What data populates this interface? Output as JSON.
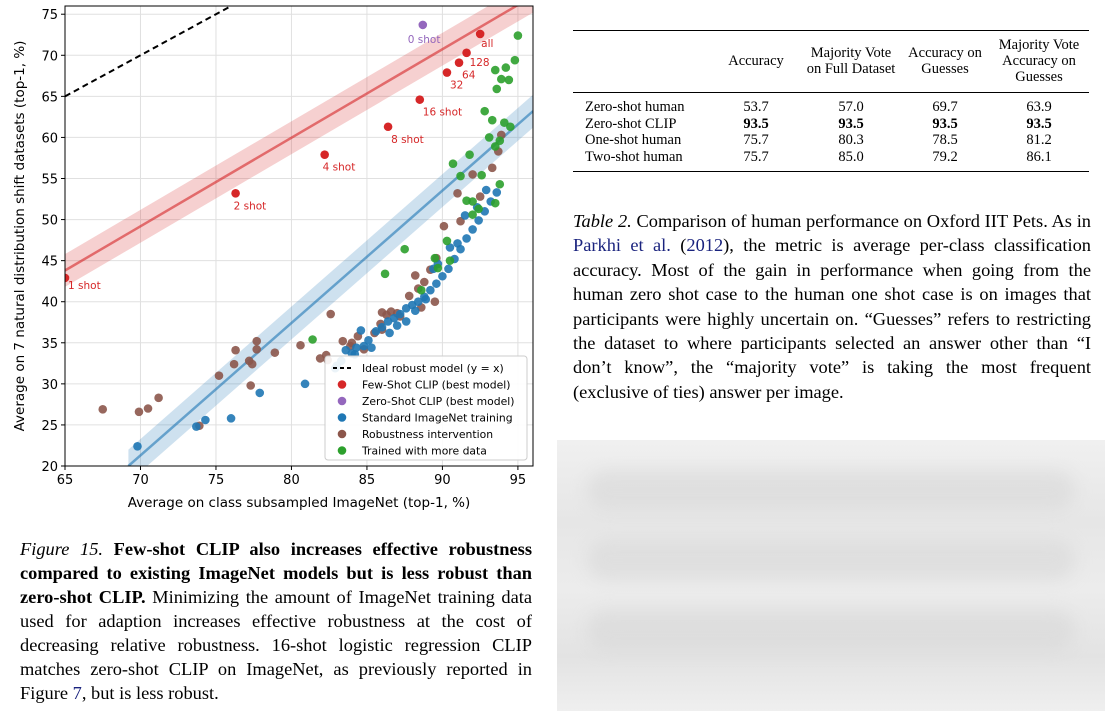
{
  "chart_data": {
    "type": "scatter",
    "xlabel": "Average on class subsampled ImageNet (top-1, %)",
    "ylabel": "Average on 7 natural distribution shift datasets (top-1, %)",
    "xlim": [
      65,
      96
    ],
    "ylim": [
      20,
      76
    ],
    "xticks": [
      65,
      70,
      75,
      80,
      85,
      90,
      95
    ],
    "yticks": [
      20,
      25,
      30,
      35,
      40,
      45,
      50,
      55,
      60,
      65,
      70,
      75
    ],
    "grid": true,
    "legend_location": "lower-right",
    "legend": [
      {
        "label": "Ideal robust model (y = x)",
        "kind": "dashed-line",
        "color": "#000000"
      },
      {
        "label": "Few-Shot CLIP (best model)",
        "kind": "dot",
        "color": "#d62728"
      },
      {
        "label": "Zero-Shot CLIP (best model)",
        "kind": "dot",
        "color": "#9467bd"
      },
      {
        "label": "Standard ImageNet training",
        "kind": "dot",
        "color": "#1f77b4"
      },
      {
        "label": "Robustness intervention",
        "kind": "dot",
        "color": "#8c564b"
      },
      {
        "label": "Trained with more data",
        "kind": "dot",
        "color": "#2ca02c"
      }
    ],
    "ideal_line": {
      "x": [
        65,
        76.5
      ],
      "y": [
        65,
        76.5
      ]
    },
    "few_shot_fit": {
      "x": [
        65,
        96
      ],
      "y": [
        43.8,
        77.2
      ],
      "color": "#d62728"
    },
    "standard_fit": {
      "x": [
        69.2,
        96
      ],
      "y": [
        20,
        63.2
      ],
      "color": "#1f77b4"
    },
    "few_shot": [
      {
        "x": 65.0,
        "y": 42.9,
        "label": "1 shot"
      },
      {
        "x": 76.3,
        "y": 53.2,
        "label": "2 shot"
      },
      {
        "x": 82.2,
        "y": 57.9,
        "label": "4 shot"
      },
      {
        "x": 86.4,
        "y": 61.3,
        "label": "8 shot"
      },
      {
        "x": 88.5,
        "y": 64.6,
        "label": "16 shot"
      },
      {
        "x": 90.3,
        "y": 67.9,
        "label": "32"
      },
      {
        "x": 91.1,
        "y": 69.1,
        "label": "64"
      },
      {
        "x": 91.6,
        "y": 70.3,
        "label": "128"
      },
      {
        "x": 92.5,
        "y": 72.6,
        "label": "all"
      }
    ],
    "zero_shot": [
      {
        "x": 88.7,
        "y": 73.7,
        "label": "0 shot"
      }
    ],
    "standard": [
      [
        69.8,
        22.4
      ],
      [
        73.7,
        24.8
      ],
      [
        74.3,
        25.6
      ],
      [
        76.0,
        25.8
      ],
      [
        77.9,
        28.9
      ],
      [
        80.9,
        30.0
      ],
      [
        83.0,
        32.2
      ],
      [
        83.3,
        32.8
      ],
      [
        83.6,
        34.1
      ],
      [
        84.0,
        33.7
      ],
      [
        84.3,
        34.4
      ],
      [
        84.8,
        34.6
      ],
      [
        85.1,
        35.3
      ],
      [
        85.6,
        36.4
      ],
      [
        86.0,
        36.9
      ],
      [
        86.4,
        37.6
      ],
      [
        86.8,
        38.0
      ],
      [
        87.2,
        38.5
      ],
      [
        87.6,
        39.2
      ],
      [
        88.0,
        39.6
      ],
      [
        88.4,
        40.0
      ],
      [
        88.8,
        40.6
      ],
      [
        89.2,
        41.4
      ],
      [
        89.6,
        42.2
      ],
      [
        90.0,
        43.1
      ],
      [
        90.4,
        44.0
      ],
      [
        90.8,
        45.2
      ],
      [
        91.2,
        46.4
      ],
      [
        91.6,
        47.7
      ],
      [
        92.0,
        48.8
      ],
      [
        92.4,
        49.9
      ],
      [
        92.8,
        51.0
      ],
      [
        93.2,
        52.2
      ],
      [
        93.6,
        53.3
      ],
      [
        90.5,
        46.6
      ],
      [
        91.5,
        50.5
      ],
      [
        92.3,
        51.5
      ],
      [
        89.4,
        44.0
      ],
      [
        88.2,
        38.9
      ],
      [
        87.0,
        37.1
      ],
      [
        86.5,
        36.2
      ],
      [
        85.3,
        34.4
      ],
      [
        84.2,
        33.6
      ],
      [
        82.9,
        31.9
      ],
      [
        87.6,
        37.6
      ],
      [
        89.7,
        44.6
      ],
      [
        91.0,
        47.1
      ],
      [
        92.9,
        53.6
      ],
      [
        84.6,
        36.5
      ],
      [
        88.9,
        40.3
      ]
    ],
    "robustness": [
      [
        67.5,
        26.9
      ],
      [
        69.9,
        26.6
      ],
      [
        70.5,
        27.0
      ],
      [
        71.2,
        28.3
      ],
      [
        73.9,
        24.9
      ],
      [
        75.2,
        31.0
      ],
      [
        76.2,
        32.4
      ],
      [
        76.3,
        34.1
      ],
      [
        77.2,
        32.8
      ],
      [
        77.4,
        32.4
      ],
      [
        77.7,
        34.2
      ],
      [
        77.7,
        35.2
      ],
      [
        78.9,
        33.8
      ],
      [
        77.3,
        29.8
      ],
      [
        80.6,
        34.7
      ],
      [
        81.9,
        33.1
      ],
      [
        82.3,
        33.5
      ],
      [
        82.4,
        32.9
      ],
      [
        82.6,
        38.5
      ],
      [
        83.4,
        35.2
      ],
      [
        83.9,
        34.6
      ],
      [
        84.4,
        35.8
      ],
      [
        84.8,
        34.2
      ],
      [
        85.5,
        36.2
      ],
      [
        86.0,
        38.7
      ],
      [
        86.3,
        38.4
      ],
      [
        86.6,
        38.8
      ],
      [
        87.2,
        38.2
      ],
      [
        87.8,
        40.7
      ],
      [
        88.4,
        41.6
      ],
      [
        88.8,
        42.4
      ],
      [
        89.2,
        43.9
      ],
      [
        89.6,
        45.3
      ],
      [
        90.1,
        49.2
      ],
      [
        91.2,
        49.8
      ],
      [
        92.5,
        52.8
      ],
      [
        93.3,
        56.3
      ],
      [
        93.7,
        58.3
      ],
      [
        93.9,
        60.3
      ],
      [
        88.2,
        43.2
      ],
      [
        87.0,
        38.6
      ],
      [
        85.9,
        37.3
      ],
      [
        84.0,
        35.0
      ],
      [
        89.5,
        40.0
      ],
      [
        91.0,
        53.2
      ],
      [
        92.0,
        55.5
      ],
      [
        86.0,
        36.6
      ],
      [
        88.6,
        39.3
      ]
    ],
    "more_data": [
      [
        81.4,
        35.4
      ],
      [
        86.2,
        43.4
      ],
      [
        87.5,
        46.4
      ],
      [
        88.6,
        41.4
      ],
      [
        89.7,
        44.1
      ],
      [
        90.3,
        47.4
      ],
      [
        90.7,
        56.8
      ],
      [
        91.2,
        55.3
      ],
      [
        91.6,
        52.3
      ],
      [
        91.8,
        57.9
      ],
      [
        92.0,
        50.6
      ],
      [
        92.4,
        51.3
      ],
      [
        92.6,
        55.4
      ],
      [
        92.8,
        63.2
      ],
      [
        93.3,
        62.1
      ],
      [
        93.5,
        58.9
      ],
      [
        93.8,
        59.6
      ],
      [
        93.6,
        65.9
      ],
      [
        93.9,
        67.1
      ],
      [
        94.2,
        68.5
      ],
      [
        94.4,
        67.0
      ],
      [
        94.8,
        69.4
      ],
      [
        95.0,
        72.4
      ],
      [
        94.1,
        61.8
      ],
      [
        94.5,
        61.3
      ],
      [
        93.8,
        54.3
      ],
      [
        93.5,
        52.0
      ],
      [
        92.0,
        52.2
      ],
      [
        90.5,
        45.0
      ],
      [
        89.5,
        45.3
      ],
      [
        93.1,
        60.0
      ],
      [
        93.5,
        68.2
      ]
    ],
    "label_colors": {
      "few": "#d62728",
      "zero": "#9467bd"
    }
  },
  "figure_caption": {
    "label": "Figure 15.",
    "bold": "Few-shot CLIP also increases effective robustness compared to existing ImageNet models but is less robust than zero-shot CLIP.",
    "text_before_link": "Minimizing the amount of ImageNet training data used for adaption increases effective robustness at the cost of decreasing relative robustness. 16-shot logistic regression CLIP matches zero-shot CLIP on ImageNet, as previously reported in Figure",
    "link": "7",
    "text_after_link": ", but is less robust."
  },
  "table": {
    "headers": [
      "",
      "Accuracy",
      "Majority Vote on Full Dataset",
      "Accuracy on Guesses",
      "Majority Vote Accuracy on Guesses"
    ],
    "rows": [
      {
        "label": "Zero-shot human",
        "values": [
          "53.7",
          "57.0",
          "69.7",
          "63.9"
        ],
        "bold": false
      },
      {
        "label": "Zero-shot CLIP",
        "values": [
          "93.5",
          "93.5",
          "93.5",
          "93.5"
        ],
        "bold": true
      },
      {
        "label": "One-shot human",
        "values": [
          "75.7",
          "80.3",
          "78.5",
          "81.2"
        ],
        "bold": false
      },
      {
        "label": "Two-shot human",
        "values": [
          "75.7",
          "85.0",
          "79.2",
          "86.1"
        ],
        "bold": false
      }
    ]
  },
  "table_caption": {
    "label": "Table 2.",
    "text_1": "Comparison of human performance on Oxford IIT Pets. As in",
    "link": "Parkhi et al.",
    "year_open": "(",
    "year_link": "2012",
    "text_2": "), the metric is average per-class classification accuracy. Most of the gain in performance when going from the human zero shot case to the human one shot case is on images that participants were highly uncertain on. “Guesses” refers to restricting the dataset to where participants selected an answer other than “I don’t know”, the “majority vote” is taking the most frequent (exclusive of ties) answer per image."
  }
}
